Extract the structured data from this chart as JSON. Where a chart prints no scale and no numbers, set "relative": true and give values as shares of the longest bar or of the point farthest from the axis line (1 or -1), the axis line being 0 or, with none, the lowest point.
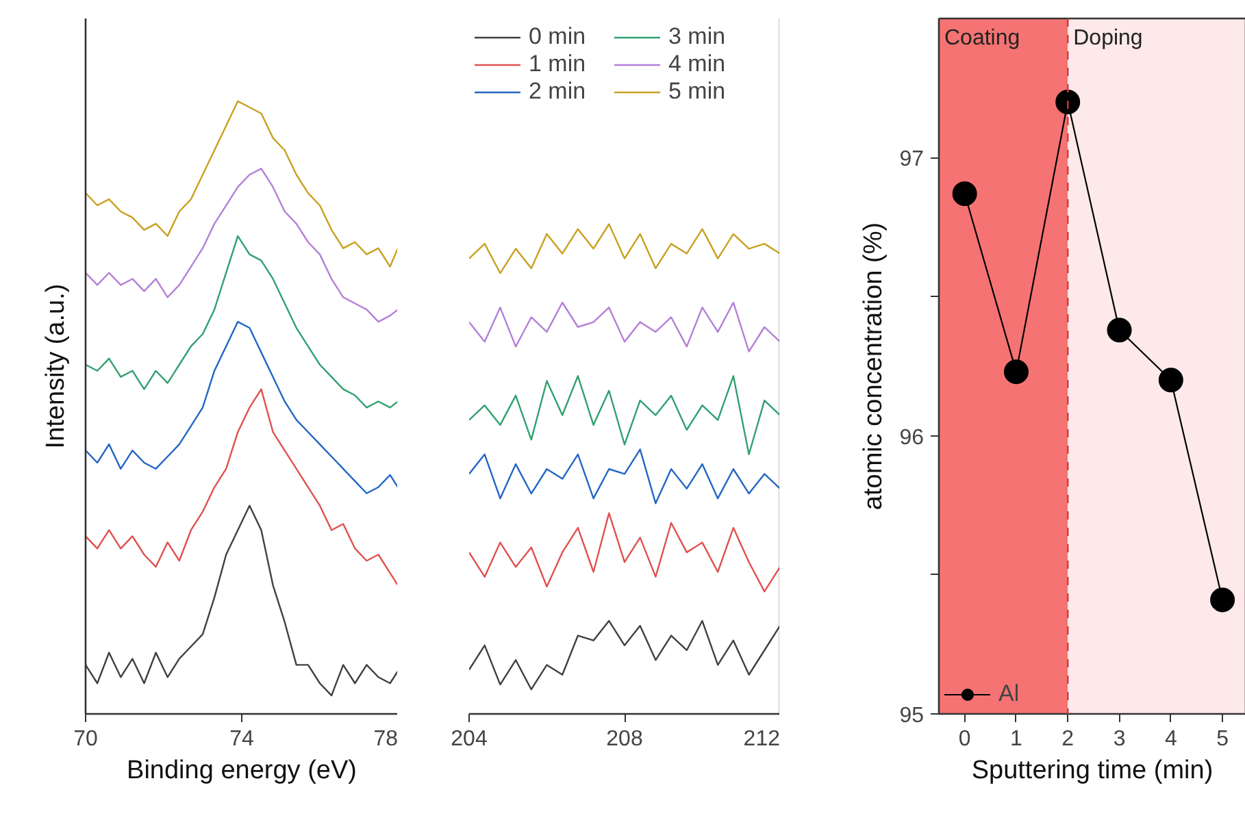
{
  "chart_data": [
    {
      "type": "line",
      "relative": true,
      "ylabel": "Intensity (a.u.)",
      "xlabel": "Binding energy (eV)",
      "xlim": [
        70,
        78
      ],
      "xticks": [
        70,
        74,
        78
      ],
      "tick_labels": "x",
      "line_style": "solid",
      "x": [
        70.0,
        70.3,
        70.6,
        70.9,
        71.2,
        71.5,
        71.8,
        72.1,
        72.4,
        72.7,
        73.0,
        73.3,
        73.6,
        73.9,
        74.2,
        74.5,
        74.8,
        75.1,
        75.4,
        75.7,
        76.0,
        76.3,
        76.6,
        76.9,
        77.2,
        77.5,
        77.8,
        78.0
      ],
      "series": [
        {
          "color": "#404040",
          "values": [
            0.08,
            0.05,
            0.1,
            0.06,
            0.09,
            0.05,
            0.1,
            0.06,
            0.09,
            0.11,
            0.13,
            0.19,
            0.26,
            0.3,
            0.34,
            0.3,
            0.21,
            0.15,
            0.08,
            0.08,
            0.05,
            0.03,
            0.08,
            0.05,
            0.08,
            0.06,
            0.05,
            0.07
          ]
        },
        {
          "color": "#e05050",
          "values": [
            0.29,
            0.27,
            0.3,
            0.27,
            0.29,
            0.26,
            0.24,
            0.28,
            0.25,
            0.3,
            0.33,
            0.37,
            0.4,
            0.46,
            0.5,
            0.53,
            0.46,
            0.43,
            0.4,
            0.37,
            0.34,
            0.3,
            0.31,
            0.27,
            0.25,
            0.26,
            0.23,
            0.21
          ]
        },
        {
          "color": "#2266c4",
          "values": [
            0.43,
            0.41,
            0.44,
            0.4,
            0.43,
            0.41,
            0.4,
            0.42,
            0.44,
            0.47,
            0.5,
            0.56,
            0.6,
            0.64,
            0.63,
            0.59,
            0.55,
            0.51,
            0.48,
            0.46,
            0.44,
            0.42,
            0.4,
            0.38,
            0.36,
            0.37,
            0.39,
            0.37
          ]
        },
        {
          "color": "#30a070",
          "values": [
            0.57,
            0.56,
            0.58,
            0.55,
            0.56,
            0.53,
            0.56,
            0.54,
            0.57,
            0.6,
            0.62,
            0.66,
            0.72,
            0.78,
            0.75,
            0.74,
            0.71,
            0.67,
            0.63,
            0.6,
            0.57,
            0.55,
            0.53,
            0.52,
            0.5,
            0.51,
            0.5,
            0.51
          ]
        },
        {
          "color": "#b57fd8",
          "values": [
            0.72,
            0.7,
            0.72,
            0.7,
            0.71,
            0.69,
            0.71,
            0.68,
            0.7,
            0.73,
            0.76,
            0.8,
            0.83,
            0.86,
            0.88,
            0.89,
            0.86,
            0.82,
            0.8,
            0.77,
            0.75,
            0.71,
            0.68,
            0.67,
            0.66,
            0.64,
            0.65,
            0.66
          ]
        },
        {
          "color": "#c9a020",
          "values": [
            0.85,
            0.83,
            0.84,
            0.82,
            0.81,
            0.79,
            0.8,
            0.78,
            0.82,
            0.84,
            0.88,
            0.92,
            0.96,
            1.0,
            0.99,
            0.98,
            0.94,
            0.92,
            0.88,
            0.85,
            0.83,
            0.79,
            0.76,
            0.77,
            0.75,
            0.76,
            0.73,
            0.76
          ]
        }
      ]
    },
    {
      "type": "line",
      "relative": true,
      "xlim": [
        204,
        212
      ],
      "xticks": [
        204,
        208,
        212
      ],
      "tick_labels": "x",
      "legend": "top left",
      "line_style": "solid",
      "x": [
        204.0,
        204.4,
        204.8,
        205.2,
        205.6,
        206.0,
        206.4,
        206.8,
        207.2,
        207.6,
        208.0,
        208.4,
        208.8,
        209.2,
        209.6,
        210.0,
        210.4,
        210.8,
        211.2,
        211.6,
        212.0
      ],
      "series": [
        {
          "name": "0 min",
          "color": "#404040",
          "values": [
            0.09,
            0.14,
            0.06,
            0.11,
            0.05,
            0.1,
            0.08,
            0.16,
            0.15,
            0.19,
            0.14,
            0.18,
            0.11,
            0.16,
            0.13,
            0.19,
            0.1,
            0.15,
            0.08,
            0.13,
            0.18
          ]
        },
        {
          "name": "1 min",
          "color": "#e05050",
          "values": [
            0.33,
            0.28,
            0.35,
            0.3,
            0.34,
            0.26,
            0.33,
            0.38,
            0.29,
            0.41,
            0.31,
            0.36,
            0.28,
            0.39,
            0.33,
            0.35,
            0.29,
            0.38,
            0.31,
            0.25,
            0.3
          ]
        },
        {
          "name": "2 min",
          "color": "#2266c4",
          "values": [
            0.49,
            0.53,
            0.44,
            0.51,
            0.45,
            0.5,
            0.48,
            0.53,
            0.44,
            0.5,
            0.49,
            0.54,
            0.43,
            0.5,
            0.46,
            0.51,
            0.44,
            0.5,
            0.45,
            0.49,
            0.46
          ]
        },
        {
          "name": "3 min",
          "color": "#30a070",
          "values": [
            0.6,
            0.63,
            0.59,
            0.65,
            0.56,
            0.68,
            0.61,
            0.69,
            0.59,
            0.66,
            0.55,
            0.64,
            0.61,
            0.65,
            0.58,
            0.63,
            0.6,
            0.69,
            0.53,
            0.64,
            0.61
          ]
        },
        {
          "name": "4 min",
          "color": "#b57fd8",
          "values": [
            0.8,
            0.76,
            0.83,
            0.75,
            0.81,
            0.78,
            0.84,
            0.79,
            0.8,
            0.83,
            0.76,
            0.8,
            0.78,
            0.81,
            0.75,
            0.83,
            0.78,
            0.84,
            0.74,
            0.79,
            0.76
          ]
        },
        {
          "name": "5 min",
          "color": "#c9a020",
          "values": [
            0.93,
            0.96,
            0.9,
            0.95,
            0.91,
            0.98,
            0.94,
            0.99,
            0.95,
            1.0,
            0.93,
            0.98,
            0.91,
            0.96,
            0.94,
            0.99,
            0.93,
            0.98,
            0.95,
            0.96,
            0.94
          ]
        }
      ]
    },
    {
      "type": "line",
      "xlabel": "Sputtering time (min)",
      "ylabel": "atomic concentration (%)",
      "xlim": [
        -0.5,
        5.45
      ],
      "xticks": [
        0,
        1,
        2,
        3,
        4,
        5
      ],
      "ylim": [
        95,
        97.5
      ],
      "yticks": [
        95,
        {
          "value": 95.5,
          "label": null
        },
        96,
        {
          "value": 96.5,
          "label": null
        },
        97
      ],
      "marker": "circle",
      "line_style": "solid",
      "legend": "bottom left",
      "x": [
        0,
        1,
        2,
        3,
        4,
        5
      ],
      "series": [
        {
          "name": "Al",
          "color": "#000000",
          "values": [
            96.87,
            96.23,
            97.2,
            96.38,
            96.2,
            95.41
          ]
        }
      ],
      "bands": [
        {
          "axis": "x",
          "from": -0.5,
          "to": 2,
          "label": "Coating",
          "color": "#f25050"
        },
        {
          "axis": "x",
          "from": 2,
          "to": 5.45,
          "label": "Doping",
          "color": "#fde4e4"
        }
      ],
      "ref_lines": [
        {
          "axis": "x",
          "value": 2,
          "color": "#e03030",
          "line_style": "dashed"
        }
      ]
    }
  ]
}
